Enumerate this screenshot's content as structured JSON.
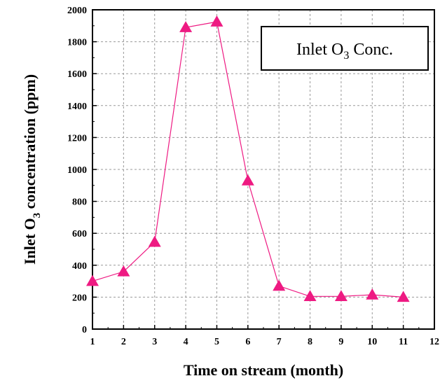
{
  "chart_data": {
    "type": "line",
    "xlabel": "Time on stream (month)",
    "ylabel_main": "Inlet O",
    "ylabel_sub": "3",
    "ylabel_tail": " concentration (ppm)",
    "legend_main": "Inlet O",
    "legend_sub": "3",
    "legend_tail": " Conc.",
    "legend_position": "top-right",
    "xlim": [
      1,
      12
    ],
    "ylim": [
      0,
      2000
    ],
    "xticks": [
      1,
      2,
      3,
      4,
      5,
      6,
      7,
      8,
      9,
      10,
      11,
      12
    ],
    "yticks": [
      0,
      200,
      400,
      600,
      800,
      1000,
      1200,
      1400,
      1600,
      1800,
      2000
    ],
    "grid": true,
    "series": [
      {
        "x": [
          1,
          2,
          3,
          4,
          5,
          6,
          7,
          8,
          9,
          10,
          11
        ],
        "y": [
          300,
          360,
          545,
          1890,
          1925,
          930,
          270,
          205,
          205,
          215,
          200
        ],
        "color": "#ee1a82",
        "marker": "triangle"
      }
    ]
  }
}
